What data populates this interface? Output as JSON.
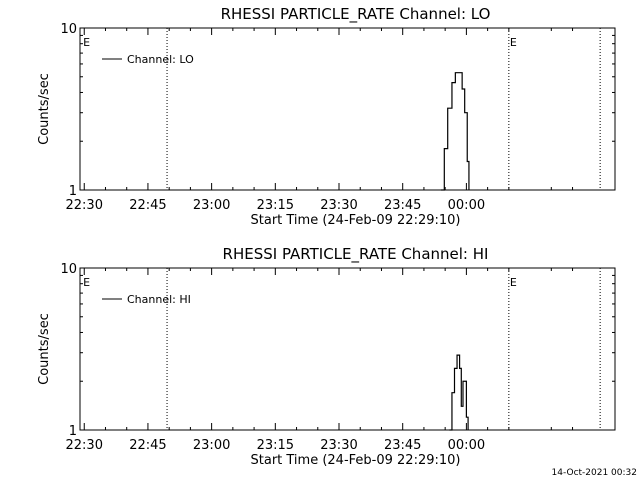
{
  "chart_data": [
    {
      "type": "line",
      "title": "RHESSI PARTICLE_RATE Channel: LO",
      "xlabel": "Start Time (24-Feb-09 22:29:10)",
      "ylabel": "Counts/sec",
      "yscale": "log",
      "ylim": [
        1,
        10
      ],
      "y_ticks": [
        "1",
        "10"
      ],
      "x_ticks": [
        "22:30",
        "22:45",
        "23:00",
        "23:15",
        "23:30",
        "23:45",
        "00:00"
      ],
      "xlim_minutes_after_2230": [
        -1,
        125
      ],
      "legend": "top-left",
      "series": [
        {
          "name": "Channel: LO",
          "points": [
            {
              "t": 84.0,
              "y": 1.0
            },
            {
              "t": 84.8,
              "y": 1.8
            },
            {
              "t": 85.6,
              "y": 3.2
            },
            {
              "t": 86.6,
              "y": 4.6
            },
            {
              "t": 87.4,
              "y": 5.3
            },
            {
              "t": 88.2,
              "y": 5.3
            },
            {
              "t": 89.0,
              "y": 4.2
            },
            {
              "t": 89.6,
              "y": 3.0
            },
            {
              "t": 90.2,
              "y": 1.5
            },
            {
              "t": 90.6,
              "y": 1.0
            }
          ]
        }
      ],
      "markers": [
        {
          "t": -0.5,
          "label": "E"
        },
        {
          "t": 100.0,
          "label": "E"
        }
      ],
      "dotted_lines_t": [
        19.5,
        100.0,
        121.5
      ]
    },
    {
      "type": "line",
      "title": "RHESSI PARTICLE_RATE Channel: HI",
      "xlabel": "Start Time (24-Feb-09 22:29:10)",
      "ylabel": "Counts/sec",
      "yscale": "log",
      "ylim": [
        1,
        10
      ],
      "y_ticks": [
        "1",
        "10"
      ],
      "x_ticks": [
        "22:30",
        "22:45",
        "23:00",
        "23:15",
        "23:30",
        "23:45",
        "00:00"
      ],
      "xlim_minutes_after_2230": [
        -1,
        125
      ],
      "legend": "top-left",
      "series": [
        {
          "name": "Channel: HI",
          "points": [
            {
              "t": 86.0,
              "y": 1.0
            },
            {
              "t": 86.6,
              "y": 1.7
            },
            {
              "t": 87.2,
              "y": 2.4
            },
            {
              "t": 87.8,
              "y": 2.9
            },
            {
              "t": 88.4,
              "y": 2.4
            },
            {
              "t": 88.8,
              "y": 1.4
            },
            {
              "t": 89.2,
              "y": 2.0
            },
            {
              "t": 89.6,
              "y": 2.0
            },
            {
              "t": 90.0,
              "y": 1.2
            },
            {
              "t": 90.4,
              "y": 1.0
            }
          ]
        }
      ],
      "markers": [
        {
          "t": -0.5,
          "label": "E"
        },
        {
          "t": 100.0,
          "label": "E"
        }
      ],
      "dotted_lines_t": [
        19.5,
        100.0,
        121.5
      ]
    }
  ],
  "footer": {
    "timestamp": "14-Oct-2021 00:32"
  }
}
